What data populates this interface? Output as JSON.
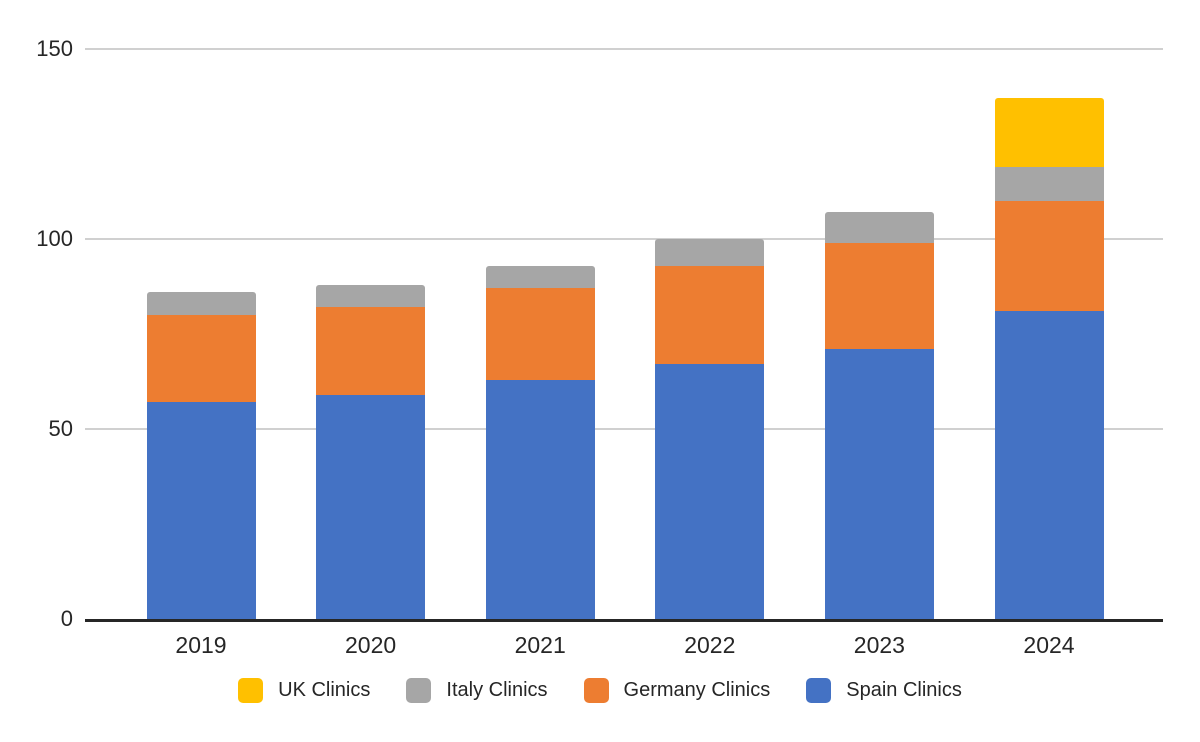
{
  "chart_data": {
    "type": "bar",
    "stacked": true,
    "title": "",
    "xlabel": "",
    "ylabel": "",
    "categories": [
      "2019",
      "2020",
      "2021",
      "2022",
      "2023",
      "2024"
    ],
    "series": [
      {
        "name": "Spain Clinics",
        "color": "#4472C4",
        "values": [
          57,
          59,
          63,
          67,
          71,
          81
        ]
      },
      {
        "name": "Germany Clinics",
        "color": "#ED7D31",
        "values": [
          23,
          23,
          24,
          26,
          28,
          29
        ]
      },
      {
        "name": "Italy Clinics",
        "color": "#A6A6A6",
        "values": [
          6,
          6,
          6,
          7,
          8,
          9
        ]
      },
      {
        "name": "UK Clinics",
        "color": "#FFC000",
        "values": [
          0,
          0,
          0,
          0,
          0,
          18
        ]
      }
    ],
    "ylim": [
      0,
      150
    ],
    "yticks": [
      0,
      50,
      100,
      150
    ],
    "grid": true,
    "legend_position": "bottom",
    "legend_order": [
      "UK Clinics",
      "Italy Clinics",
      "Germany Clinics",
      "Spain Clinics"
    ]
  },
  "styles": {
    "background": "#FFFFFF",
    "gridline_color": "#D0D0D0",
    "axis_color": "#262626",
    "text_color": "#262626"
  }
}
